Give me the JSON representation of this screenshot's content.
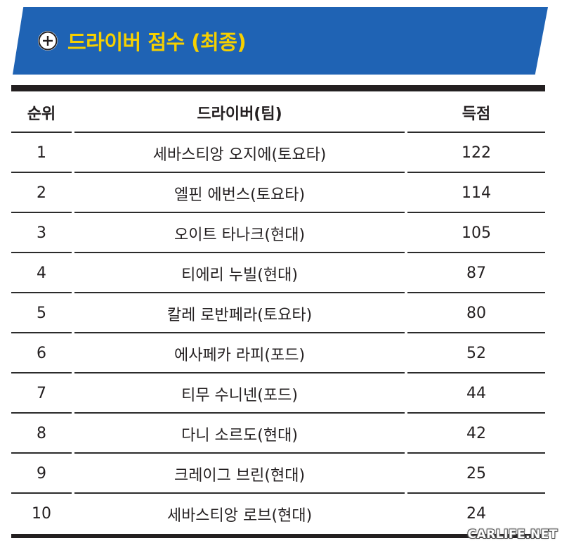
{
  "title": "드라이버 점수 (최종)",
  "icons": {
    "banner_icon": "plus-circle-icon"
  },
  "colors": {
    "banner_bg": "#1f63b4",
    "title_text": "#f6d000",
    "rule": "#231f20"
  },
  "table": {
    "headers": {
      "rank": "순위",
      "driver": "드라이버(팀)",
      "points": "득점"
    },
    "rows": [
      {
        "rank": "1",
        "driver": "세바스티앙 오지에(토요타)",
        "points": "122"
      },
      {
        "rank": "2",
        "driver": "엘핀 에번스(토요타)",
        "points": "114"
      },
      {
        "rank": "3",
        "driver": "오이트 타나크(현대)",
        "points": "105"
      },
      {
        "rank": "4",
        "driver": "티에리 누빌(현대)",
        "points": "87"
      },
      {
        "rank": "5",
        "driver": "칼레 로반페라(토요타)",
        "points": "80"
      },
      {
        "rank": "6",
        "driver": "에사페카 라피(포드)",
        "points": "52"
      },
      {
        "rank": "7",
        "driver": "티무 수니넨(포드)",
        "points": "44"
      },
      {
        "rank": "8",
        "driver": "다니 소르도(현대)",
        "points": "42"
      },
      {
        "rank": "9",
        "driver": "크레이그 브린(현대)",
        "points": "25"
      },
      {
        "rank": "10",
        "driver": "세바스티앙 로브(현대)",
        "points": "24"
      }
    ]
  },
  "watermark": "CARLIFE.NET"
}
